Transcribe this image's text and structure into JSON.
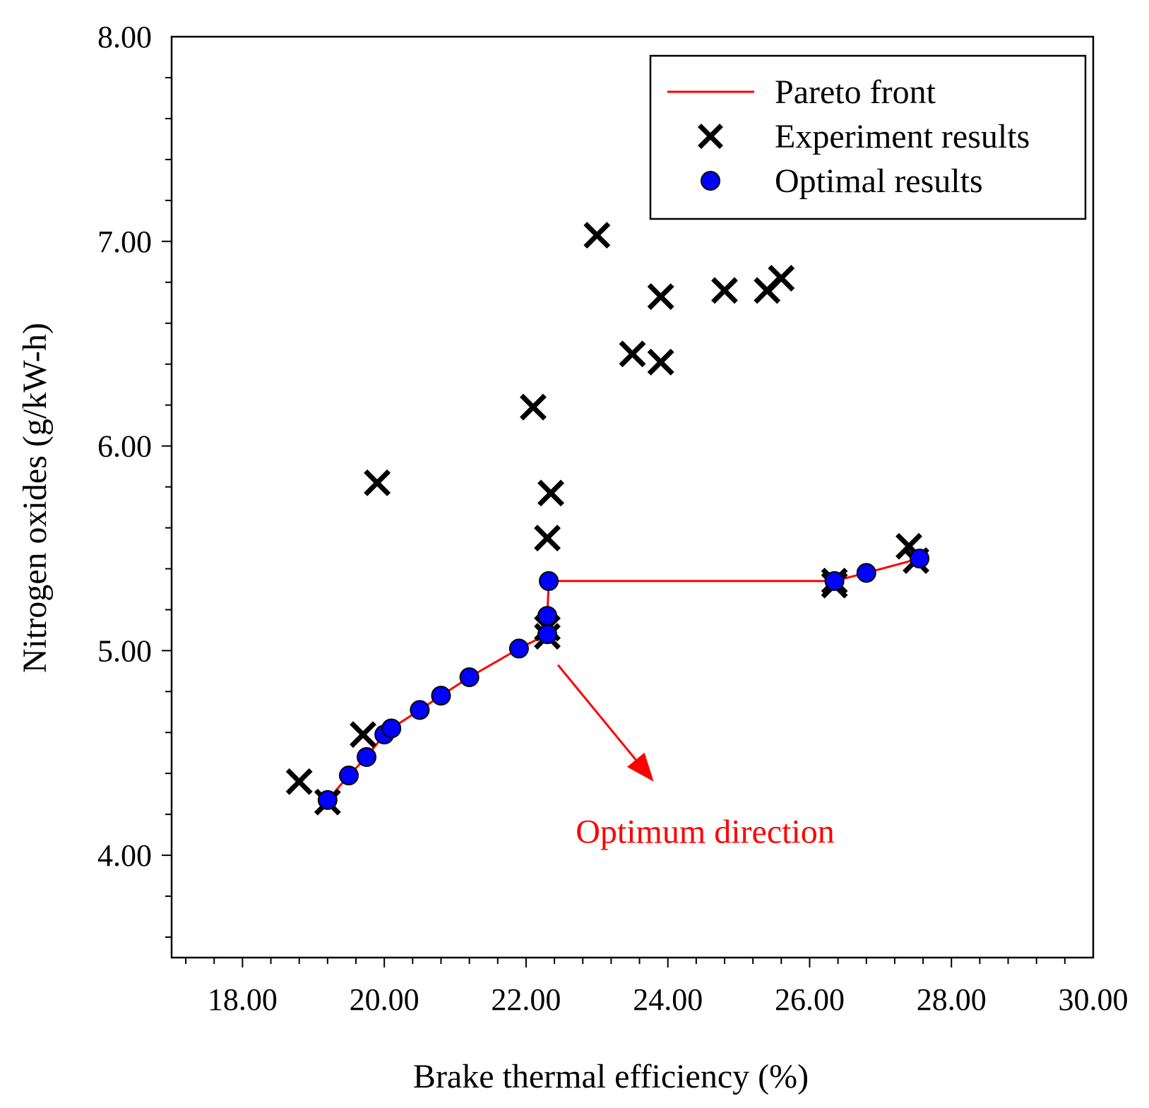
{
  "chart_data": {
    "type": "scatter",
    "xlabel": "Brake thermal efficiency (%)",
    "ylabel": "Nitrogen oxides (g/kW-h)",
    "xlim": [
      17.0,
      30.0
    ],
    "ylim": [
      3.5,
      8.0
    ],
    "x_ticks": [
      "18.00",
      "20.00",
      "22.00",
      "24.00",
      "26.00",
      "28.00",
      "30.00"
    ],
    "y_ticks": [
      "4.00",
      "5.00",
      "6.00",
      "7.00",
      "8.00"
    ],
    "grid": false,
    "legend_position": "top-right",
    "series": [
      {
        "name": "Pareto front",
        "kind": "line",
        "color": "#ff0000",
        "points": [
          [
            19.2,
            4.27
          ],
          [
            19.5,
            4.39
          ],
          [
            19.75,
            4.48
          ],
          [
            20.0,
            4.59
          ],
          [
            20.1,
            4.62
          ],
          [
            20.5,
            4.71
          ],
          [
            20.8,
            4.78
          ],
          [
            21.2,
            4.87
          ],
          [
            21.9,
            5.01
          ],
          [
            22.3,
            5.08
          ],
          [
            22.3,
            5.17
          ],
          [
            22.32,
            5.34
          ],
          [
            26.35,
            5.34
          ],
          [
            26.8,
            5.38
          ],
          [
            27.55,
            5.45
          ]
        ]
      },
      {
        "name": "Experiment results",
        "kind": "x-marker",
        "color": "#000000",
        "points": [
          [
            18.8,
            4.36
          ],
          [
            19.2,
            4.26
          ],
          [
            19.7,
            4.59
          ],
          [
            19.9,
            5.82
          ],
          [
            22.1,
            6.19
          ],
          [
            22.35,
            5.77
          ],
          [
            22.3,
            5.55
          ],
          [
            22.3,
            5.11
          ],
          [
            22.3,
            5.07
          ],
          [
            23.0,
            7.03
          ],
          [
            23.5,
            6.45
          ],
          [
            23.9,
            6.73
          ],
          [
            23.9,
            6.41
          ],
          [
            24.8,
            6.76
          ],
          [
            25.4,
            6.76
          ],
          [
            25.6,
            6.82
          ],
          [
            26.35,
            5.34
          ],
          [
            26.35,
            5.32
          ],
          [
            27.4,
            5.51
          ],
          [
            27.5,
            5.44
          ]
        ]
      },
      {
        "name": "Optimal results",
        "kind": "circle",
        "color": "#0000ff",
        "points": [
          [
            19.2,
            4.27
          ],
          [
            19.5,
            4.39
          ],
          [
            19.75,
            4.48
          ],
          [
            20.0,
            4.59
          ],
          [
            20.1,
            4.62
          ],
          [
            20.5,
            4.71
          ],
          [
            20.8,
            4.78
          ],
          [
            21.2,
            4.87
          ],
          [
            21.9,
            5.01
          ],
          [
            22.3,
            5.08
          ],
          [
            22.3,
            5.17
          ],
          [
            22.32,
            5.34
          ],
          [
            26.35,
            5.34
          ],
          [
            26.8,
            5.38
          ],
          [
            27.55,
            5.45
          ]
        ]
      }
    ],
    "annotations": [
      {
        "text": "Optimum direction",
        "color": "#ff0000",
        "arrow_from": [
          22.45,
          4.93
        ],
        "arrow_to": [
          23.8,
          4.36
        ],
        "text_at": [
          22.7,
          4.06
        ]
      }
    ]
  }
}
